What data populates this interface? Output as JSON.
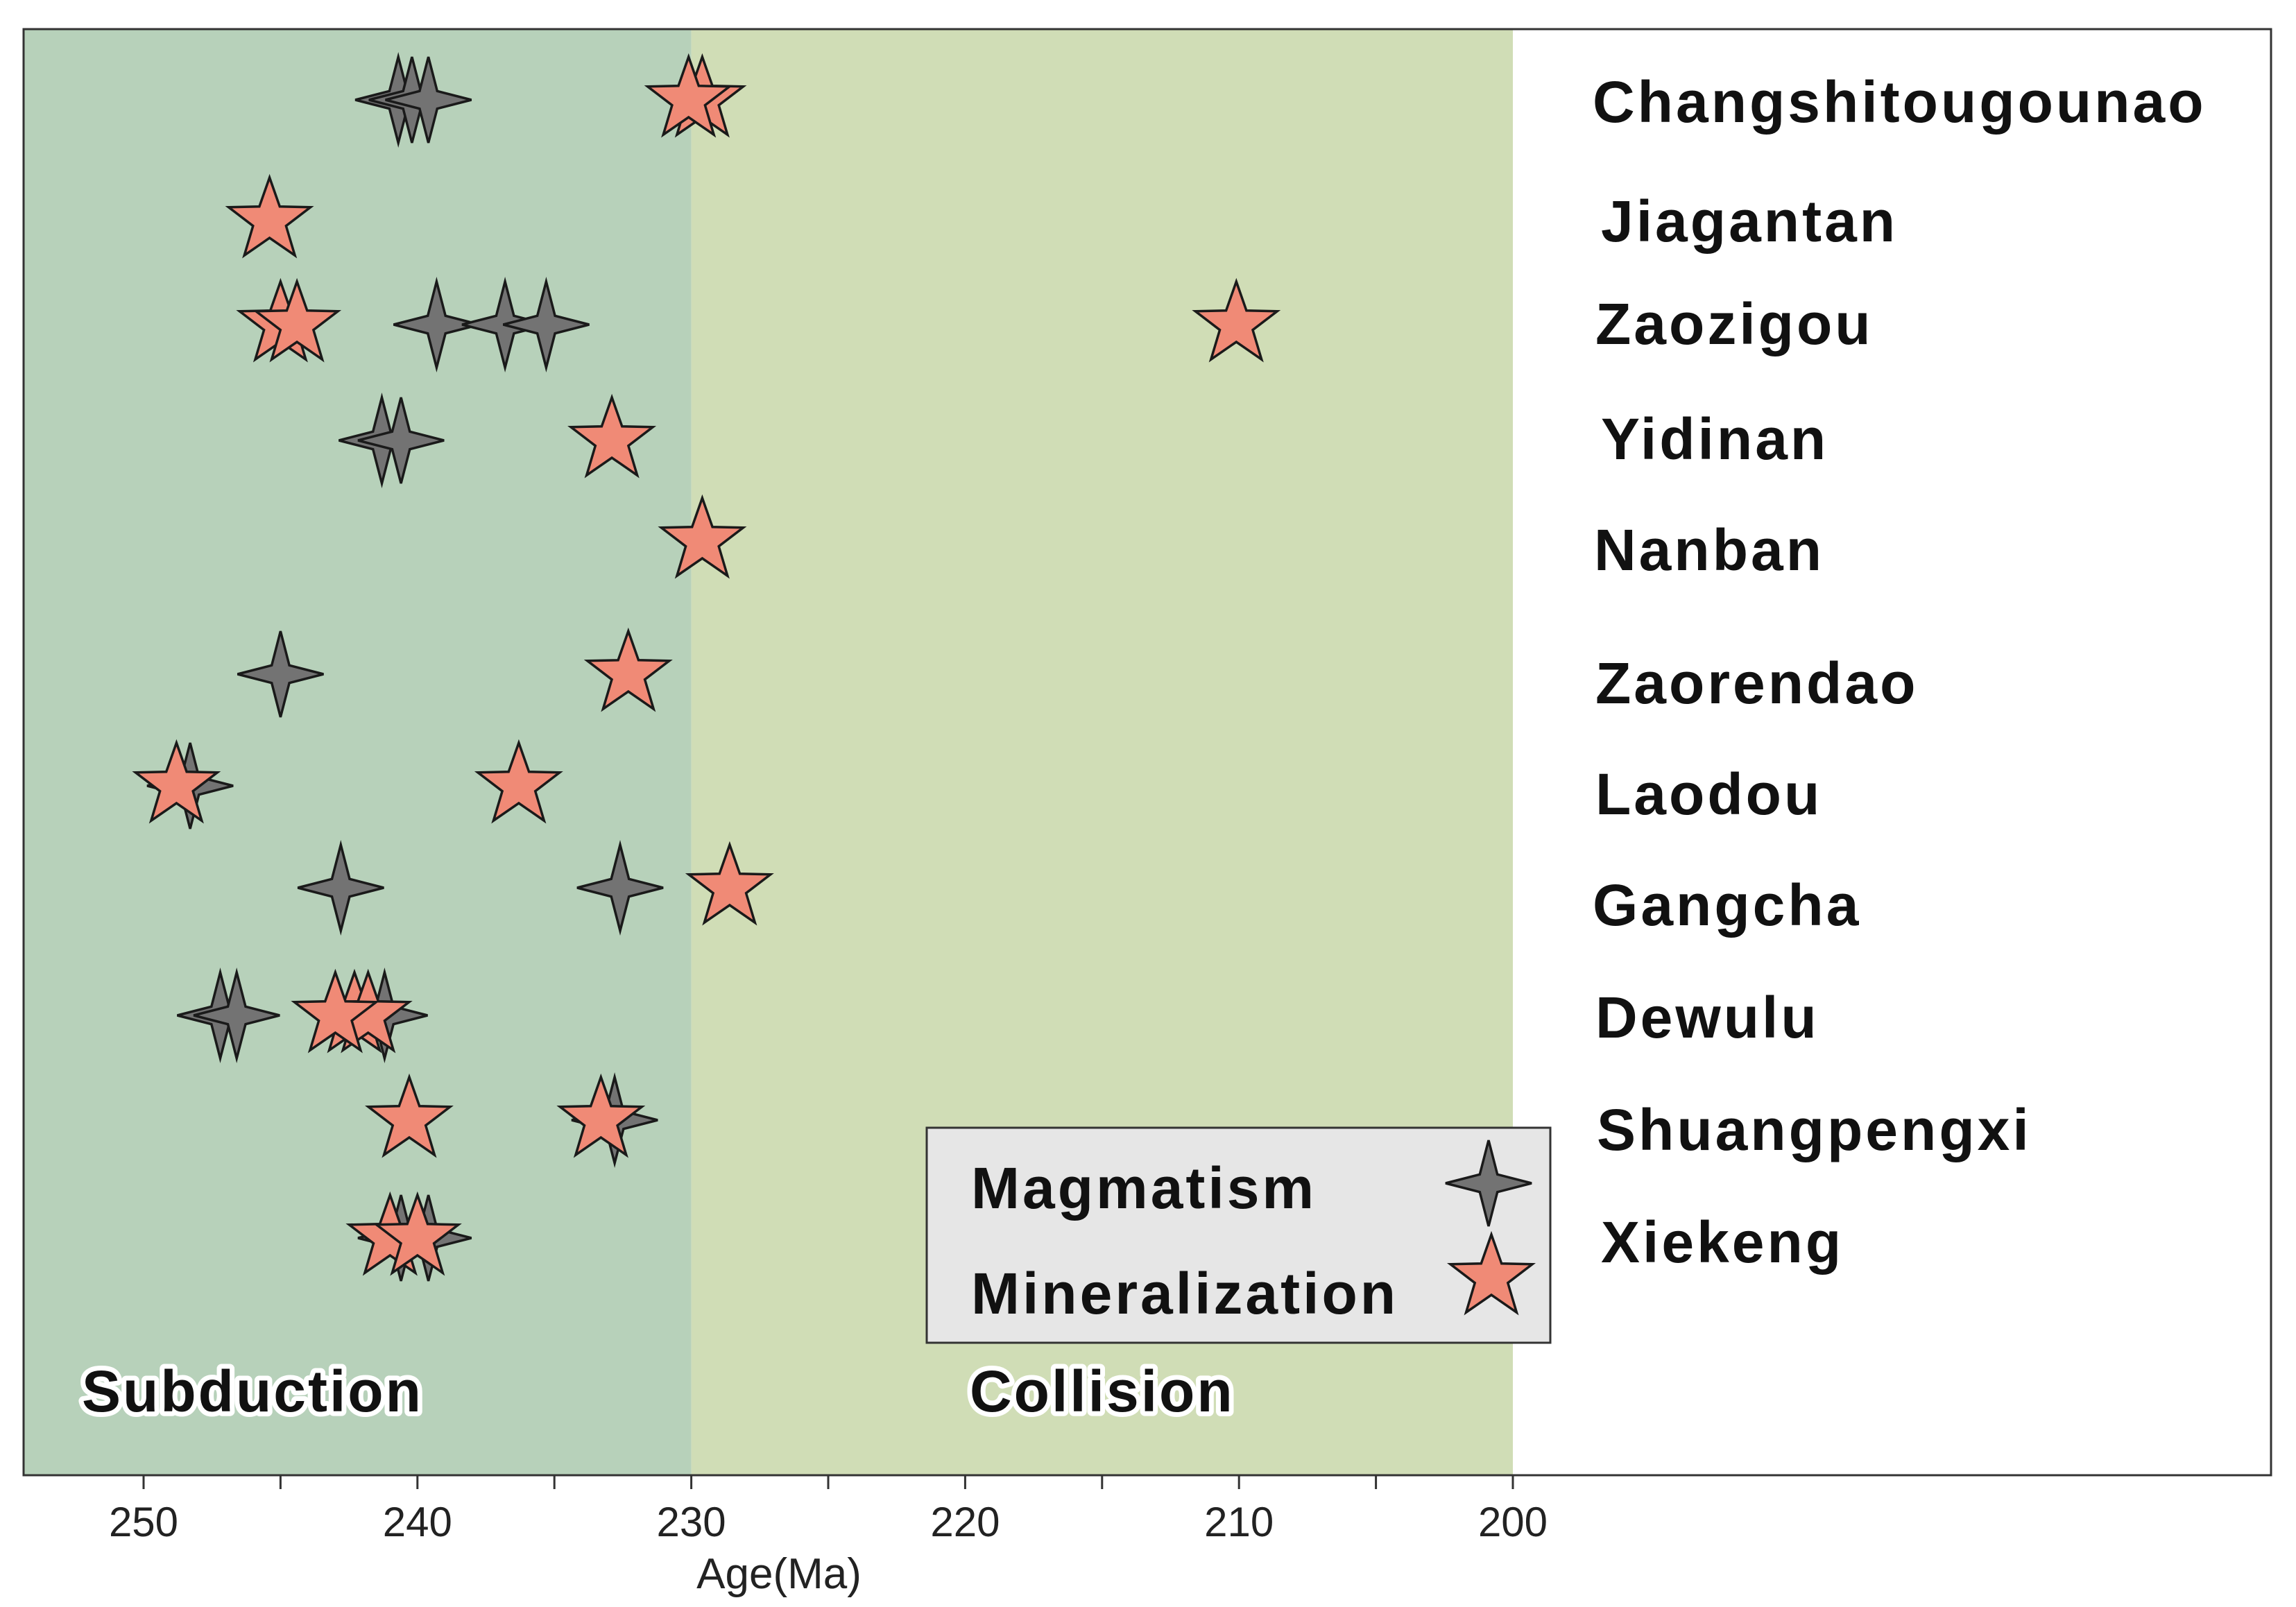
{
  "chart_data": {
    "type": "scatter",
    "title": "",
    "xlabel": "Age(Ma)",
    "ylabel": "",
    "xlim": [
      255,
      200
    ],
    "x_ticks": [
      250,
      240,
      230,
      220,
      210,
      200
    ],
    "x_minor_ticks": [
      245,
      235,
      225,
      215,
      205
    ],
    "grid": false,
    "regions": [
      {
        "name": "Subduction",
        "from": 255,
        "to": 230,
        "color": "#b7d1ba"
      },
      {
        "name": "Collision",
        "from": 230,
        "to": 200,
        "color": "#d0ddb6"
      }
    ],
    "categories": [
      "Changshitougounao",
      "Jiagantan",
      "Zaozigou",
      "Yidinan",
      "Nanban",
      "Zaorendao",
      "Laodou",
      "Gangcha",
      "Dewulu",
      "Shuangpengxi",
      "Xiekeng"
    ],
    "series": [
      {
        "name": "Magmatism",
        "marker": "four-point-star",
        "color": "#737373",
        "points": [
          {
            "category": "Changshitougounao",
            "age": 240.7
          },
          {
            "category": "Changshitougounao",
            "age": 240.2
          },
          {
            "category": "Changshitougounao",
            "age": 239.6
          },
          {
            "category": "Zaozigou",
            "age": 239.3
          },
          {
            "category": "Zaozigou",
            "age": 236.8
          },
          {
            "category": "Zaozigou",
            "age": 235.3
          },
          {
            "category": "Yidinan",
            "age": 241.3
          },
          {
            "category": "Yidinan",
            "age": 240.6
          },
          {
            "category": "Zaorendao",
            "age": 245.0
          },
          {
            "category": "Laodou",
            "age": 248.3
          },
          {
            "category": "Gangcha",
            "age": 242.8
          },
          {
            "category": "Gangcha",
            "age": 232.6
          },
          {
            "category": "Dewulu",
            "age": 247.2
          },
          {
            "category": "Dewulu",
            "age": 246.6
          },
          {
            "category": "Dewulu",
            "age": 241.2
          },
          {
            "category": "Shuangpengxi",
            "age": 232.8
          },
          {
            "category": "Xiekeng",
            "age": 240.6
          },
          {
            "category": "Xiekeng",
            "age": 239.6
          }
        ]
      },
      {
        "name": "Mineralization",
        "marker": "five-point-star",
        "color": "#f08a76",
        "points": [
          {
            "category": "Changshitougounao",
            "age": 229.6
          },
          {
            "category": "Changshitougounao",
            "age": 230.1
          },
          {
            "category": "Jiagantan",
            "age": 245.4
          },
          {
            "category": "Zaozigou",
            "age": 245.0
          },
          {
            "category": "Zaozigou",
            "age": 244.4
          },
          {
            "category": "Zaozigou",
            "age": 210.1
          },
          {
            "category": "Yidinan",
            "age": 232.9
          },
          {
            "category": "Nanban",
            "age": 229.6
          },
          {
            "category": "Zaorendao",
            "age": 232.3
          },
          {
            "category": "Laodou",
            "age": 248.8
          },
          {
            "category": "Laodou",
            "age": 236.3
          },
          {
            "category": "Gangcha",
            "age": 228.6
          },
          {
            "category": "Dewulu",
            "age": 242.3
          },
          {
            "category": "Dewulu",
            "age": 241.8
          },
          {
            "category": "Dewulu",
            "age": 243.0
          },
          {
            "category": "Shuangpengxi",
            "age": 240.3
          },
          {
            "category": "Shuangpengxi",
            "age": 233.3
          },
          {
            "category": "Xiekeng",
            "age": 241.0
          },
          {
            "category": "Xiekeng",
            "age": 240.0
          }
        ]
      }
    ],
    "legend": {
      "position": "bottom-right",
      "entries": [
        "Magmatism",
        "Mineralization"
      ],
      "background": "#e6e6e6"
    }
  }
}
